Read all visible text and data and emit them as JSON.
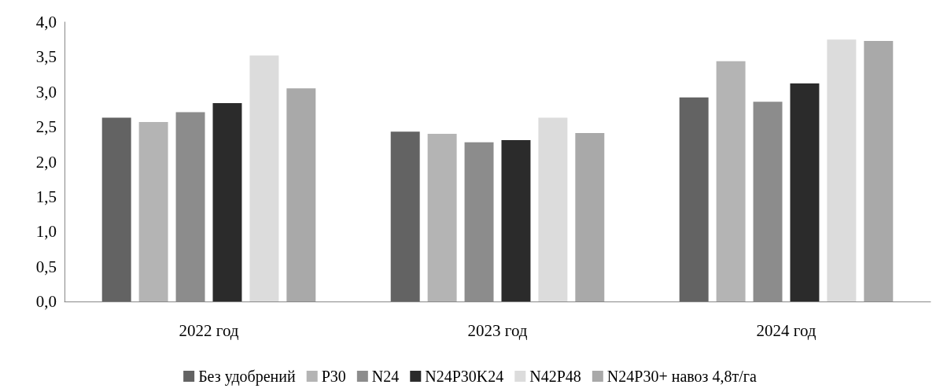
{
  "chart_data": {
    "type": "bar",
    "categories": [
      "2022 год",
      "2023 год",
      "2024 год"
    ],
    "series": [
      {
        "name": "Без удобрений",
        "color": "#636363",
        "values": [
          2.63,
          2.43,
          2.92
        ]
      },
      {
        "name": "P30",
        "color": "#b4b4b4",
        "values": [
          2.57,
          2.4,
          3.44
        ]
      },
      {
        "name": "N24",
        "color": "#8c8c8c",
        "values": [
          2.71,
          2.28,
          2.86
        ]
      },
      {
        "name": "N24P30K24",
        "color": "#2b2b2b",
        "values": [
          2.84,
          2.31,
          3.12
        ]
      },
      {
        "name": "N42P48",
        "color": "#dcdcdc",
        "values": [
          3.52,
          2.63,
          3.75
        ]
      },
      {
        "name": "N24P30+ навоз 4,8т/га",
        "color": "#a9a9a9",
        "values": [
          3.05,
          2.41,
          3.73
        ]
      }
    ],
    "ylim": [
      0,
      4
    ],
    "yticks": [
      {
        "value": 0,
        "label": "0,0"
      },
      {
        "value": 0.5,
        "label": "0,5"
      },
      {
        "value": 1,
        "label": "1,0"
      },
      {
        "value": 1.5,
        "label": "1,5"
      },
      {
        "value": 2,
        "label": "2,0"
      },
      {
        "value": 2.5,
        "label": "2,5"
      },
      {
        "value": 3,
        "label": "3,0"
      },
      {
        "value": 3.5,
        "label": "3,5"
      },
      {
        "value": 4,
        "label": "4,0"
      }
    ],
    "grid": false,
    "legend": "bottom"
  }
}
